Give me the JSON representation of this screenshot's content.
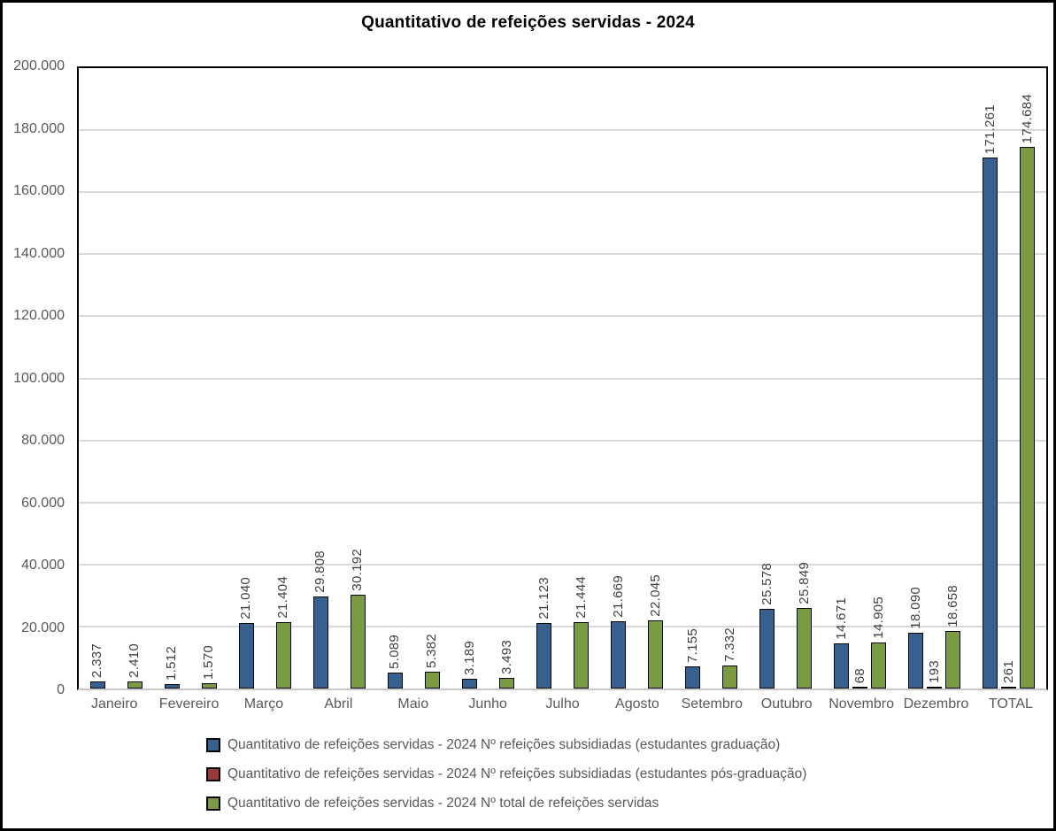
{
  "title": "Quantitativo de refeições servidas - 2024",
  "colors": {
    "graduacao": "#36618F",
    "pos_graduacao": "#9C3A38",
    "total": "#7B9B43",
    "bar_border": "#060606",
    "gridline": "#D9D9D9",
    "axis_text": "#595959",
    "data_label_text": "#3F3F3F",
    "plot_border": "#000000",
    "baseline": "#C8C8C8"
  },
  "y_axis": {
    "ticks": [
      "200.000",
      "180.000",
      "160.000",
      "140.000",
      "120.000",
      "100.000",
      "80.000",
      "60.000",
      "40.000",
      "20.000",
      "0"
    ],
    "max": 200000,
    "step": 20000
  },
  "legend": [
    {
      "series": "graduacao",
      "label": "Quantitativo de refeições servidas - 2024 Nº refeições subsidiadas (estudantes graduação)"
    },
    {
      "series": "pos_graduacao",
      "label": "Quantitativo de refeições servidas - 2024 Nº refeições subsidiadas (estudantes pós-graduação)"
    },
    {
      "series": "total",
      "label": "Quantitativo de refeições servidas - 2024 Nº total de refeições servidas"
    }
  ],
  "chart_data": {
    "type": "bar",
    "title": "Quantitativo de refeições servidas - 2024",
    "categories": [
      "Janeiro",
      "Fevereiro",
      "Março",
      "Abril",
      "Maio",
      "Junho",
      "Julho",
      "Agosto",
      "Setembro",
      "Outubro",
      "Novembro",
      "Dezembro",
      "TOTAL"
    ],
    "series": [
      {
        "key": "graduacao",
        "name": "Nº refeições subsidiadas (estudantes graduação)",
        "values": [
          2337,
          1512,
          21040,
          29808,
          5089,
          3189,
          21123,
          21669,
          7155,
          25578,
          14671,
          18090,
          171261
        ],
        "labels": [
          "2.337",
          "1.512",
          "21.040",
          "29.808",
          "5.089",
          "3.189",
          "21.123",
          "21.669",
          "7.155",
          "25.578",
          "14.671",
          "18.090",
          "171.261"
        ]
      },
      {
        "key": "pos_graduacao",
        "name": "Nº refeições subsidiadas (estudantes pós-graduação)",
        "values": [
          0,
          0,
          0,
          0,
          0,
          0,
          0,
          0,
          0,
          0,
          68,
          193,
          261
        ],
        "labels": [
          "",
          "",
          "",
          "",
          "",
          "",
          "",
          "",
          "",
          "",
          "68",
          "193",
          "261"
        ]
      },
      {
        "key": "total",
        "name": "Nº total de refeições servidas",
        "values": [
          2410,
          1570,
          21404,
          30192,
          5382,
          3493,
          21444,
          22045,
          7332,
          25849,
          14905,
          18658,
          174684
        ],
        "labels": [
          "2.410",
          "1.570",
          "21.404",
          "30.192",
          "5.382",
          "3.493",
          "21.444",
          "22.045",
          "7.332",
          "25.849",
          "14.905",
          "18.658",
          "174.684"
        ]
      }
    ],
    "ylim": [
      0,
      200000
    ],
    "xlabel": "",
    "ylabel": "",
    "grid": true,
    "legend_position": "bottom",
    "data_labels_rotated": true
  }
}
